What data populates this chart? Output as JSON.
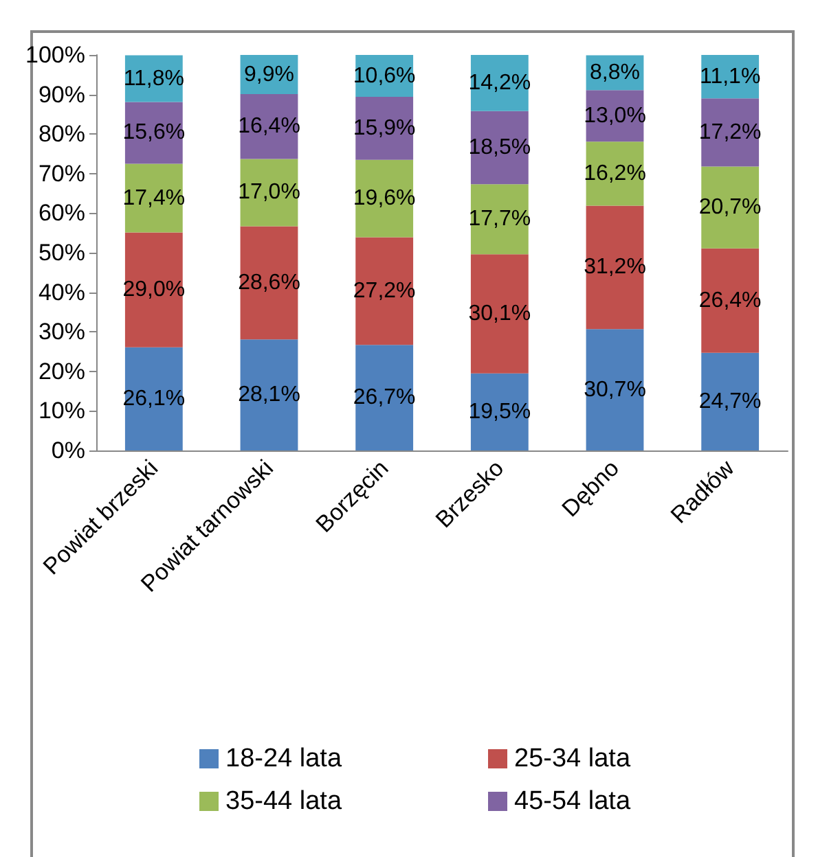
{
  "chart_data": {
    "type": "bar",
    "stacked": true,
    "categories": [
      "Powiat brzeski",
      "Powiat tarnowski",
      "Borzęcin",
      "Brzesko",
      "Dębno",
      "Radłów"
    ],
    "series": [
      {
        "name": "18-24 lata",
        "color": "#4f81bd",
        "values": [
          26.1,
          28.1,
          26.7,
          19.5,
          30.7,
          24.7
        ],
        "value_labels": [
          "26,1%",
          "28,1%",
          "26,7%",
          "19,5%",
          "30,7%",
          "24,7%"
        ]
      },
      {
        "name": "25-34 lata",
        "color": "#c0504d",
        "values": [
          29.0,
          28.6,
          27.2,
          30.1,
          31.2,
          26.4
        ],
        "value_labels": [
          "29,0%",
          "28,6%",
          "27,2%",
          "30,1%",
          "31,2%",
          "26,4%"
        ]
      },
      {
        "name": "35-44 lata",
        "color": "#9bbb59",
        "values": [
          17.4,
          17.0,
          19.6,
          17.7,
          16.2,
          20.7
        ],
        "value_labels": [
          "17,4%",
          "17,0%",
          "19,6%",
          "17,7%",
          "16,2%",
          "20,7%"
        ]
      },
      {
        "name": "45-54 lata",
        "color": "#8064a2",
        "values": [
          15.6,
          16.4,
          15.9,
          18.5,
          13.0,
          17.2
        ],
        "value_labels": [
          "15,6%",
          "16,4%",
          "15,9%",
          "18,5%",
          "13,0%",
          "17,2%"
        ]
      },
      {
        "color": "#4bacc6",
        "values": [
          11.8,
          9.9,
          10.6,
          14.2,
          8.8,
          11.1
        ],
        "value_labels": [
          "11,8%",
          "9,9%",
          "10,6%",
          "14,2%",
          "8,8%",
          "11,1%"
        ]
      }
    ],
    "ylim": [
      0,
      100
    ],
    "yticks": [
      {
        "value": 0,
        "label": "0%"
      },
      {
        "value": 10,
        "label": "10%"
      },
      {
        "value": 20,
        "label": "20%"
      },
      {
        "value": 30,
        "label": "30%"
      },
      {
        "value": 40,
        "label": "40%"
      },
      {
        "value": 50,
        "label": "50%"
      },
      {
        "value": 60,
        "label": "60%"
      },
      {
        "value": 70,
        "label": "70%"
      },
      {
        "value": 80,
        "label": "80%"
      },
      {
        "value": 90,
        "label": "90%"
      },
      {
        "value": 100,
        "label": "100%"
      }
    ],
    "grid": false,
    "legend": "bottom"
  }
}
